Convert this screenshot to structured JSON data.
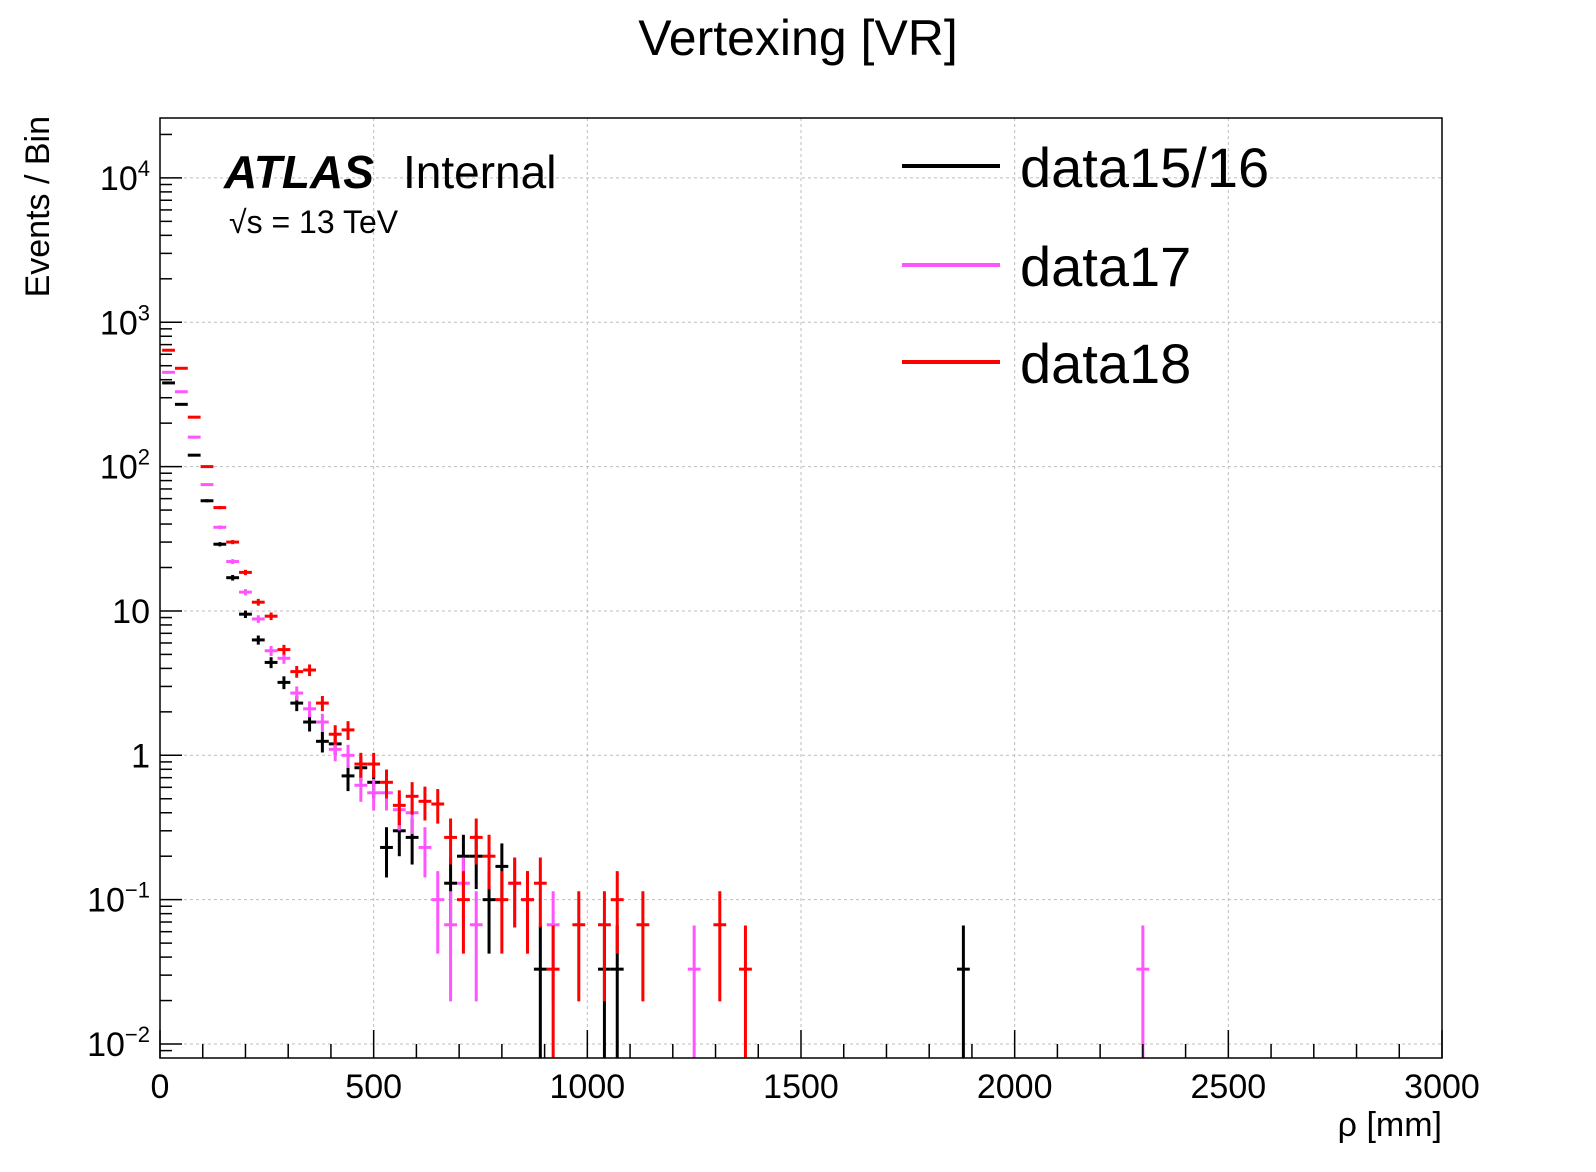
{
  "chart_data": {
    "type": "scatter",
    "title": "Vertexing [VR]",
    "xlabel": "ρ [mm]",
    "ylabel": "Events / Bin",
    "xlim": [
      0,
      3000
    ],
    "ylim": [
      0.008,
      26000
    ],
    "yscale": "log",
    "grid": true,
    "legend_position": "top-right",
    "x_ticks": [
      "0",
      "500",
      "1000",
      "1500",
      "2000",
      "2500",
      "3000"
    ],
    "x_tick_values": [
      0,
      500,
      1000,
      1500,
      2000,
      2500,
      3000
    ],
    "y_ticks": [
      {
        "value": 0.01,
        "base": "10",
        "exp": "−2"
      },
      {
        "value": 0.1,
        "base": "10",
        "exp": "−1"
      },
      {
        "value": 1,
        "base": "1",
        "exp": ""
      },
      {
        "value": 10,
        "base": "10",
        "exp": ""
      },
      {
        "value": 100,
        "base": "10",
        "exp": "2"
      },
      {
        "value": 1000,
        "base": "10",
        "exp": "3"
      },
      {
        "value": 10000,
        "base": "10",
        "exp": "4"
      }
    ],
    "atlas_label": "ATLAS",
    "atlas_sublabel": "Internal",
    "energy_label": "√s = 13 TeV",
    "series": [
      {
        "name": "data15/16",
        "color": "#000000",
        "points": [
          [
            20,
            380
          ],
          [
            50,
            270
          ],
          [
            80,
            120
          ],
          [
            110,
            58
          ],
          [
            140,
            29
          ],
          [
            170,
            17
          ],
          [
            200,
            9.5
          ],
          [
            230,
            6.3
          ],
          [
            260,
            4.4
          ],
          [
            290,
            3.2
          ],
          [
            320,
            2.3
          ],
          [
            350,
            1.7
          ],
          [
            380,
            1.25
          ],
          [
            410,
            1.2
          ],
          [
            440,
            0.72
          ],
          [
            470,
            0.82
          ],
          [
            500,
            0.65
          ],
          [
            530,
            0.23
          ],
          [
            560,
            0.3
          ],
          [
            590,
            0.27
          ],
          [
            680,
            0.13
          ],
          [
            710,
            0.2
          ],
          [
            740,
            0.2
          ],
          [
            770,
            0.1
          ],
          [
            800,
            0.17
          ],
          [
            890,
            0.033
          ],
          [
            1040,
            0.033
          ],
          [
            1070,
            0.033
          ],
          [
            1880,
            0.033
          ]
        ]
      },
      {
        "name": "data17",
        "color": "#ff55ff",
        "points": [
          [
            20,
            450
          ],
          [
            50,
            330
          ],
          [
            80,
            160
          ],
          [
            110,
            75
          ],
          [
            140,
            38
          ],
          [
            170,
            22
          ],
          [
            200,
            13.5
          ],
          [
            230,
            8.8
          ],
          [
            260,
            5.3
          ],
          [
            290,
            4.7
          ],
          [
            320,
            2.7
          ],
          [
            350,
            2.1
          ],
          [
            380,
            1.7
          ],
          [
            410,
            1.1
          ],
          [
            440,
            1.0
          ],
          [
            470,
            0.62
          ],
          [
            500,
            0.55
          ],
          [
            530,
            0.55
          ],
          [
            560,
            0.42
          ],
          [
            590,
            0.4
          ],
          [
            620,
            0.23
          ],
          [
            650,
            0.1
          ],
          [
            680,
            0.067
          ],
          [
            710,
            0.13
          ],
          [
            740,
            0.067
          ],
          [
            830,
            0.13
          ],
          [
            860,
            0.1
          ],
          [
            920,
            0.067
          ],
          [
            1250,
            0.033
          ],
          [
            2300,
            0.033
          ]
        ]
      },
      {
        "name": "data18",
        "color": "#ff0000",
        "points": [
          [
            20,
            640
          ],
          [
            50,
            480
          ],
          [
            80,
            220
          ],
          [
            110,
            100
          ],
          [
            140,
            52
          ],
          [
            170,
            30
          ],
          [
            200,
            18.5
          ],
          [
            230,
            11.5
          ],
          [
            260,
            9.2
          ],
          [
            290,
            5.4
          ],
          [
            320,
            3.8
          ],
          [
            350,
            3.9
          ],
          [
            380,
            2.3
          ],
          [
            410,
            1.4
          ],
          [
            440,
            1.5
          ],
          [
            470,
            0.87
          ],
          [
            500,
            0.87
          ],
          [
            530,
            0.65
          ],
          [
            560,
            0.45
          ],
          [
            590,
            0.52
          ],
          [
            620,
            0.48
          ],
          [
            650,
            0.46
          ],
          [
            680,
            0.27
          ],
          [
            710,
            0.1
          ],
          [
            740,
            0.27
          ],
          [
            770,
            0.2
          ],
          [
            800,
            0.1
          ],
          [
            830,
            0.13
          ],
          [
            860,
            0.1
          ],
          [
            890,
            0.13
          ],
          [
            920,
            0.033
          ],
          [
            980,
            0.067
          ],
          [
            1040,
            0.067
          ],
          [
            1070,
            0.1
          ],
          [
            1130,
            0.067
          ],
          [
            1310,
            0.067
          ],
          [
            1370,
            0.033
          ]
        ]
      }
    ]
  }
}
